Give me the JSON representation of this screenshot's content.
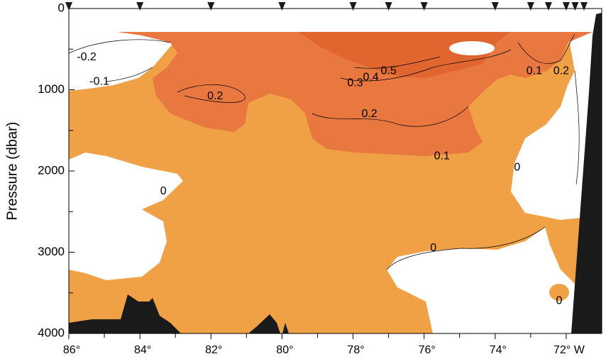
{
  "chart_data": {
    "type": "contour",
    "ylabel": "Pressure (dbar)",
    "ylim": [
      0,
      4000
    ],
    "yticks": [
      0,
      1000,
      2000,
      3000,
      4000
    ],
    "yminor": [
      500,
      1500,
      2500,
      3500
    ],
    "y_reversed": true,
    "xlim": [
      86,
      71
    ],
    "xticks": [
      {
        "value": 86,
        "label": "86°"
      },
      {
        "value": 84,
        "label": "84°"
      },
      {
        "value": 82,
        "label": "82°"
      },
      {
        "value": 80,
        "label": "80°"
      },
      {
        "value": 78,
        "label": "78°"
      },
      {
        "value": 76,
        "label": "76°"
      },
      {
        "value": 74,
        "label": "74°"
      },
      {
        "value": 72,
        "label": "72° W"
      }
    ],
    "xminor": [
      85,
      83,
      81,
      79,
      77,
      75,
      73
    ],
    "stations": [
      86,
      84,
      82,
      80,
      78,
      77,
      76,
      74,
      73,
      72.5,
      72,
      71.75,
      71.5
    ],
    "contour_labels": [
      {
        "value": -0.2,
        "x": 85.5,
        "y": 600
      },
      {
        "value": -0.1,
        "x": 85.14,
        "y": 900
      },
      {
        "value": 0.2,
        "x": 81.88,
        "y": 1080
      },
      {
        "value": 0.3,
        "x": 77.94,
        "y": 920
      },
      {
        "value": 0.4,
        "x": 77.5,
        "y": 850
      },
      {
        "value": 0.5,
        "x": 77.0,
        "y": 770
      },
      {
        "value": 0.2,
        "x": 77.54,
        "y": 1300
      },
      {
        "value": 0.1,
        "x": 75.5,
        "y": 1820
      },
      {
        "value": 0,
        "x": 83.34,
        "y": 2250
      },
      {
        "value": 0,
        "x": 73.38,
        "y": 1960
      },
      {
        "value": 0,
        "x": 75.74,
        "y": 2950
      },
      {
        "value": 0,
        "x": 72.2,
        "y": 3600
      },
      {
        "value": 0.1,
        "x": 72.9,
        "y": 770
      },
      {
        "value": 0.2,
        "x": 72.14,
        "y": 770
      }
    ]
  }
}
